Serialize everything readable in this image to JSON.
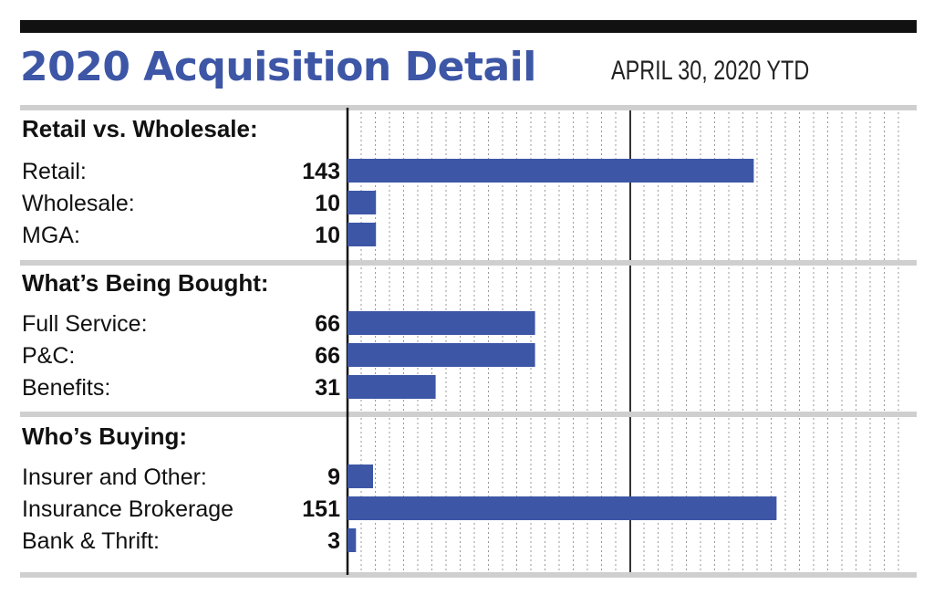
{
  "header": {
    "title": "2020 Acquisition Detail",
    "subtitle": "APRIL 30, 2020 YTD"
  },
  "colors": {
    "title": "#3d56a6",
    "bar": "#3d56a6",
    "divider": "#cfcfcf",
    "top_rule": "#111111"
  },
  "chart_data": {
    "type": "bar",
    "orientation": "horizontal",
    "title": "2020 Acquisition Detail",
    "subtitle": "APRIL 30, 2020 YTD",
    "grid": true,
    "xlim": [
      0,
      200
    ],
    "groups": [
      {
        "name": "Retail vs. Wholesale:",
        "categories": [
          "Retail:",
          "Wholesale:",
          "MGA:"
        ],
        "values": [
          143,
          10,
          10
        ]
      },
      {
        "name": "What’s Being Bought:",
        "categories": [
          "Full Service:",
          "P&C:",
          "Benefits:"
        ],
        "values": [
          66,
          66,
          31
        ]
      },
      {
        "name": "Who’s Buying:",
        "categories": [
          "Insurer and Other:",
          "Insurance Brokerage",
          "Bank & Thrift:"
        ],
        "values": [
          9,
          151,
          3
        ]
      }
    ]
  }
}
